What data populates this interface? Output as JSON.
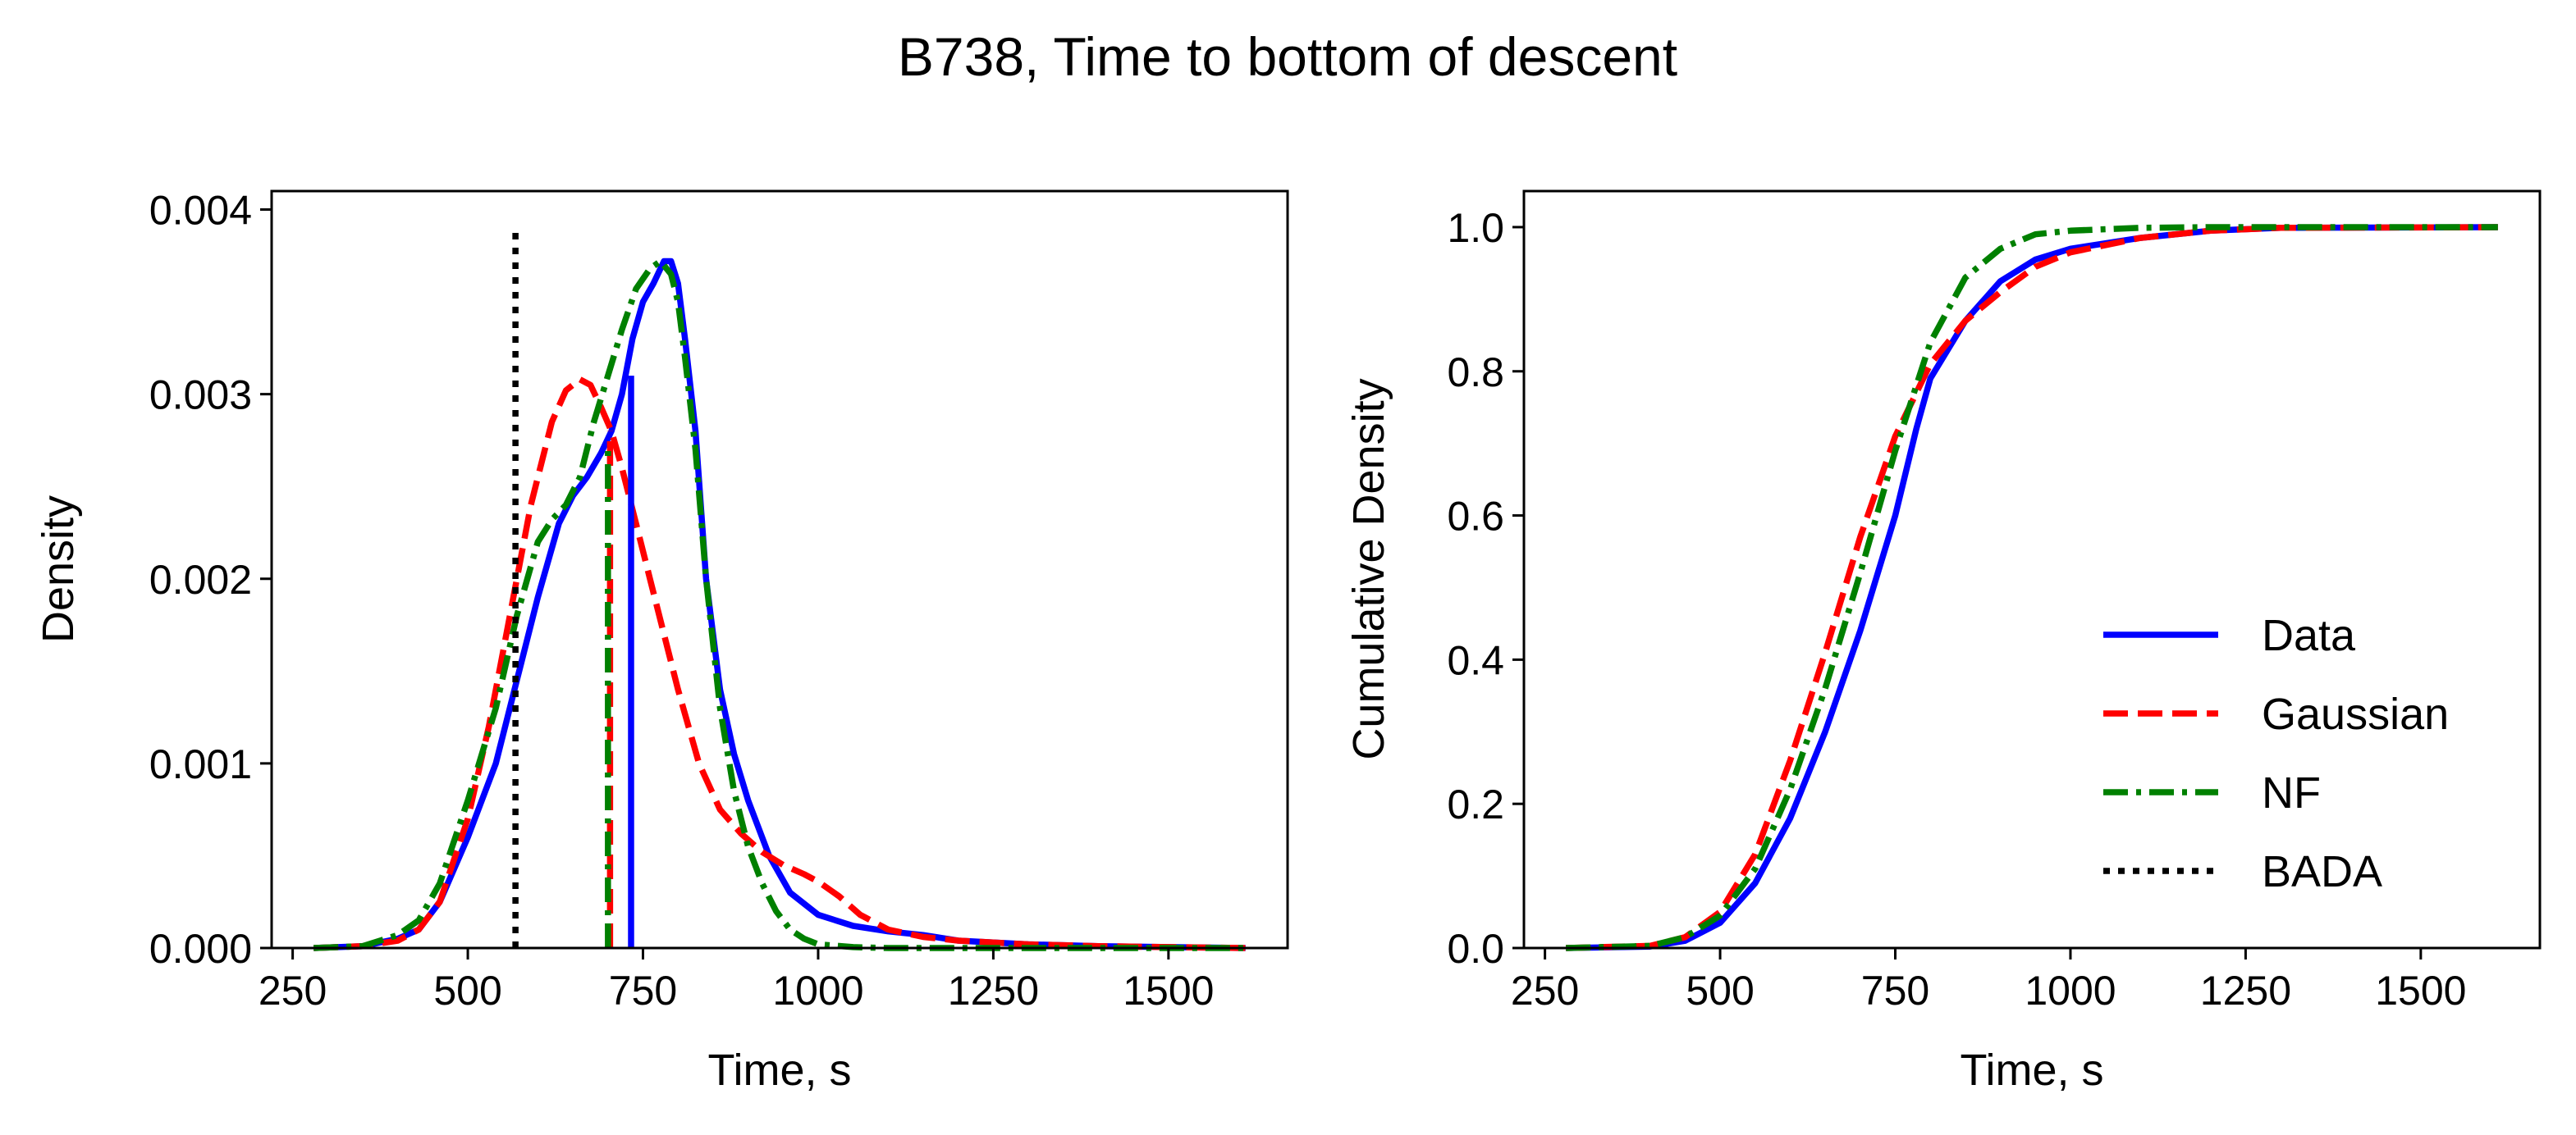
{
  "figure": {
    "title": "B738, Time to bottom of descent"
  },
  "chart_data": [
    {
      "type": "line",
      "panel": "left",
      "xlabel": "Time, s",
      "ylabel": "Density",
      "xlim": [
        220,
        1670
      ],
      "ylim": [
        0,
        0.0041
      ],
      "xticks": [
        250,
        500,
        750,
        1000,
        1250,
        1500
      ],
      "xtick_labels": [
        "250",
        "500",
        "750",
        "1000",
        "1250",
        "1500"
      ],
      "yticks": [
        0,
        0.001,
        0.002,
        0.003,
        0.004
      ],
      "ytick_labels": [
        "0.000",
        "0.001",
        "0.002",
        "0.003",
        "0.004"
      ],
      "series": [
        {
          "name": "Data",
          "color": "#0000ff",
          "style": "solid",
          "x": [
            280,
            350,
            400,
            430,
            460,
            500,
            540,
            570,
            600,
            630,
            650,
            670,
            690,
            705,
            720,
            735,
            750,
            765,
            780,
            790,
            800,
            810,
            825,
            840,
            860,
            880,
            900,
            930,
            960,
            1000,
            1050,
            1100,
            1150,
            1200,
            1300,
            1400,
            1500,
            1610
          ],
          "y": [
            0,
            1e-05,
            5e-05,
            0.0001,
            0.00025,
            0.0006,
            0.001,
            0.00145,
            0.0019,
            0.0023,
            0.00245,
            0.00255,
            0.00268,
            0.0028,
            0.003,
            0.0033,
            0.0035,
            0.0036,
            0.00372,
            0.00372,
            0.0036,
            0.0033,
            0.0028,
            0.002,
            0.0014,
            0.00105,
            0.0008,
            0.0005,
            0.0003,
            0.00018,
            0.00012,
            9e-05,
            7e-05,
            4e-05,
            2e-05,
            1e-05,
            5e-06,
            0
          ]
        },
        {
          "name": "Gaussian",
          "color": "#ff0000",
          "style": "dashed",
          "x": [
            280,
            350,
            400,
            430,
            460,
            500,
            530,
            560,
            590,
            620,
            640,
            660,
            675,
            690,
            705,
            720,
            740,
            760,
            780,
            800,
            830,
            860,
            890,
            920,
            950,
            980,
            1000,
            1030,
            1060,
            1100,
            1150,
            1200,
            1300,
            1400,
            1500,
            1610
          ],
          "y": [
            0,
            1e-05,
            4e-05,
            0.0001,
            0.00025,
            0.0007,
            0.0012,
            0.0018,
            0.0024,
            0.00285,
            0.00302,
            0.00308,
            0.00305,
            0.00293,
            0.0028,
            0.0026,
            0.0023,
            0.002,
            0.0017,
            0.0014,
            0.001,
            0.00075,
            0.00062,
            0.00052,
            0.00045,
            0.0004,
            0.00036,
            0.00028,
            0.00018,
            0.0001,
            6e-05,
            4e-05,
            2e-05,
            1e-05,
            5e-06,
            0
          ]
        },
        {
          "name": "NF",
          "color": "#008000",
          "style": "dashdot",
          "x": [
            280,
            350,
            400,
            430,
            460,
            500,
            540,
            570,
            600,
            620,
            640,
            660,
            680,
            700,
            720,
            740,
            760,
            775,
            790,
            800,
            810,
            825,
            840,
            860,
            880,
            900,
            920,
            940,
            960,
            980,
            1000,
            1050,
            1100,
            1200,
            1300,
            1610
          ],
          "y": [
            0,
            1e-05,
            7e-05,
            0.00015,
            0.00035,
            0.0008,
            0.0013,
            0.0018,
            0.0022,
            0.00232,
            0.0024,
            0.00255,
            0.00285,
            0.0031,
            0.00335,
            0.00357,
            0.00368,
            0.00372,
            0.00365,
            0.0035,
            0.0032,
            0.0027,
            0.002,
            0.0013,
            0.00085,
            0.00055,
            0.00035,
            0.0002,
            0.0001,
            5e-05,
            2e-05,
            5e-06,
            0,
            0,
            0,
            0
          ]
        },
        {
          "name": "Data mean",
          "color": "#0000ff",
          "style": "solid-thin",
          "vline_x": 733,
          "vline_top": 0.0031
        },
        {
          "name": "Gaussian mean",
          "color": "#ff0000",
          "style": "dashed",
          "vline_x": 703,
          "vline_top": 0.0028
        },
        {
          "name": "NF mean",
          "color": "#008000",
          "style": "dashdot",
          "vline_x": 700,
          "vline_top": 0.0027
        },
        {
          "name": "BADA",
          "color": "#000000",
          "style": "dotted",
          "vline_x": 568,
          "vline_top": 0.0039
        }
      ]
    },
    {
      "type": "line",
      "panel": "right",
      "xlabel": "Time, s",
      "ylabel": "Cumulative Density",
      "xlim": [
        220,
        1670
      ],
      "ylim": [
        0,
        1.05
      ],
      "xticks": [
        250,
        500,
        750,
        1000,
        1250,
        1500
      ],
      "xtick_labels": [
        "250",
        "500",
        "750",
        "1000",
        "1250",
        "1500"
      ],
      "yticks": [
        0,
        0.2,
        0.4,
        0.6,
        0.8,
        1.0
      ],
      "ytick_labels": [
        "0.0",
        "0.2",
        "0.4",
        "0.6",
        "0.8",
        "1.0"
      ],
      "legend": {
        "position": "lower right",
        "entries": [
          {
            "label": "Data",
            "color": "#0000ff",
            "style": "solid"
          },
          {
            "label": "Gaussian",
            "color": "#ff0000",
            "style": "dashed"
          },
          {
            "label": "NF",
            "color": "#008000",
            "style": "dashdot"
          },
          {
            "label": "BADA",
            "color": "#000000",
            "style": "dotted"
          }
        ]
      },
      "series": [
        {
          "name": "Data",
          "color": "#0000ff",
          "style": "solid",
          "x": [
            280,
            400,
            450,
            500,
            550,
            600,
            650,
            700,
            750,
            780,
            800,
            850,
            900,
            950,
            1000,
            1100,
            1200,
            1300,
            1610
          ],
          "y": [
            0,
            0.002,
            0.01,
            0.035,
            0.09,
            0.18,
            0.3,
            0.44,
            0.6,
            0.72,
            0.79,
            0.87,
            0.925,
            0.955,
            0.97,
            0.985,
            0.995,
            0.999,
            1.0
          ]
        },
        {
          "name": "Gaussian",
          "color": "#ff0000",
          "style": "dashed",
          "x": [
            280,
            400,
            450,
            500,
            550,
            600,
            650,
            700,
            750,
            800,
            850,
            900,
            950,
            1000,
            1100,
            1200,
            1300,
            1610
          ],
          "y": [
            0,
            0.003,
            0.015,
            0.05,
            0.13,
            0.26,
            0.41,
            0.57,
            0.71,
            0.81,
            0.87,
            0.91,
            0.945,
            0.965,
            0.985,
            0.995,
            0.999,
            1.0
          ]
        },
        {
          "name": "NF",
          "color": "#008000",
          "style": "dashdot",
          "x": [
            280,
            400,
            450,
            500,
            550,
            600,
            650,
            700,
            750,
            800,
            850,
            900,
            950,
            1000,
            1100,
            1200,
            1610
          ],
          "y": [
            0,
            0.003,
            0.015,
            0.045,
            0.11,
            0.22,
            0.36,
            0.52,
            0.69,
            0.84,
            0.93,
            0.97,
            0.99,
            0.995,
            0.999,
            1.0,
            1.0
          ]
        }
      ]
    }
  ]
}
